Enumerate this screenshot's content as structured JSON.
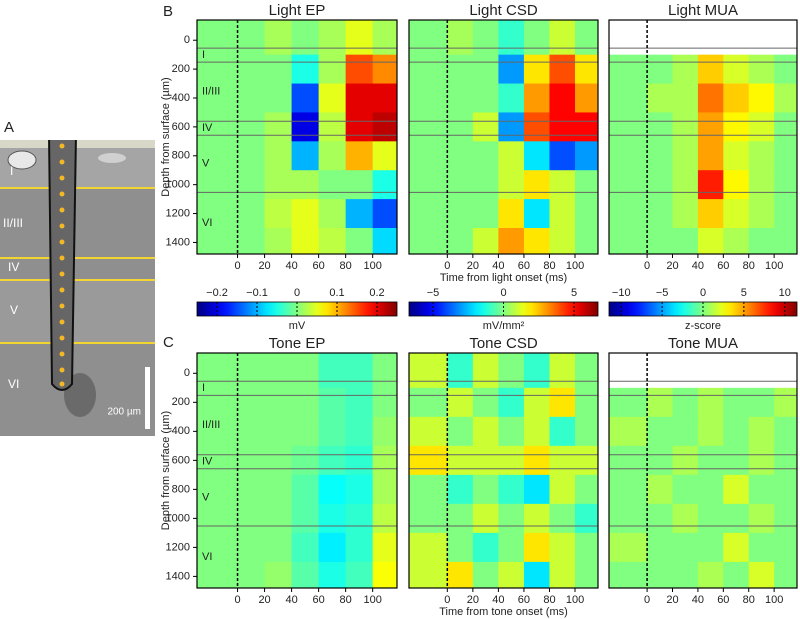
{
  "panel_labels": [
    "A",
    "B",
    "C"
  ],
  "scale_bar": "200 µm",
  "layers": {
    "names": [
      "I",
      "II/III",
      "IV",
      "V",
      "VI"
    ],
    "boundaries": [
      55,
      152,
      561,
      658,
      1053
    ]
  },
  "colorbars": [
    {
      "label": "mV",
      "clim": [
        -0.25,
        0.25
      ],
      "ticks": [
        {
          "value": -0.2,
          "label": "−0.2"
        },
        {
          "value": -0.1,
          "label": "−0.1"
        },
        0,
        0.1,
        0.2
      ]
    },
    {
      "label": "mV/mm²",
      "clim": [
        -6.7,
        6.7
      ],
      "ticks": [
        {
          "value": -5,
          "label": "−5"
        },
        0,
        5
      ]
    },
    {
      "label": "z-score",
      "clim": [
        -11.5,
        11.5
      ],
      "ticks": [
        {
          "value": -10,
          "label": "−10"
        },
        {
          "value": -5,
          "label": "−5"
        },
        0,
        5,
        10
      ]
    }
  ],
  "chart_data": [
    {
      "type": "heatmap",
      "title": "Light EP",
      "colorbar": 0,
      "onset": 0,
      "ylabel": "Depth from surface (µm)",
      "x": [
        -10,
        10,
        30,
        50,
        70,
        90,
        110
      ],
      "y": [
        0,
        200,
        400,
        600,
        800,
        1000,
        1200,
        1400
      ],
      "xlim": [
        -30,
        118
      ],
      "ylim": [
        -140,
        1480
      ],
      "xticks": [
        0,
        20,
        40,
        60,
        80,
        100
      ],
      "yticks": [
        0,
        200,
        400,
        600,
        800,
        1000,
        1200,
        1400
      ],
      "values": [
        [
          0,
          0,
          0.02,
          0,
          0.02,
          0.05,
          0.02
        ],
        [
          0,
          0,
          0,
          -0.05,
          0.02,
          0.15,
          0.12
        ],
        [
          0,
          0,
          0,
          -0.15,
          0.05,
          0.2,
          0.2
        ],
        [
          0,
          0,
          0.02,
          -0.2,
          0.03,
          0.2,
          0.22
        ],
        [
          0,
          0,
          0.02,
          -0.1,
          0.02,
          0.1,
          0.05
        ],
        [
          0,
          0,
          0.02,
          0.02,
          0,
          0,
          -0.05
        ],
        [
          0,
          0,
          0.03,
          0.05,
          0.02,
          -0.1,
          -0.15
        ],
        [
          0,
          0,
          0.02,
          0.05,
          0.03,
          0,
          -0.08
        ]
      ]
    },
    {
      "type": "heatmap",
      "title": "Light CSD",
      "colorbar": 1,
      "onset": 0,
      "xlabel": "Time from light onset (ms)",
      "x": [
        -10,
        10,
        30,
        50,
        70,
        90,
        110
      ],
      "y": [
        0,
        200,
        400,
        600,
        800,
        1000,
        1200,
        1400
      ],
      "xlim": [
        -30,
        118
      ],
      "ylim": [
        -140,
        1480
      ],
      "xticks": [
        0,
        20,
        40,
        60,
        80,
        100
      ],
      "values": [
        [
          0,
          0.5,
          0,
          -1,
          0,
          1,
          0
        ],
        [
          0,
          0,
          0,
          -3,
          2,
          4,
          2
        ],
        [
          0,
          0,
          0,
          -1,
          3,
          5,
          3
        ],
        [
          0,
          0,
          1,
          -3,
          4,
          5,
          5
        ],
        [
          0,
          0,
          0,
          1,
          -2,
          -4,
          -3
        ],
        [
          0,
          0,
          0,
          1,
          2,
          1,
          0
        ],
        [
          0,
          0,
          0,
          2,
          -2,
          1,
          0
        ],
        [
          0,
          0,
          1,
          3,
          2,
          1,
          0
        ]
      ]
    },
    {
      "type": "heatmap",
      "title": "Light MUA",
      "colorbar": 2,
      "onset": 0,
      "x": [
        -10,
        10,
        30,
        50,
        70,
        90,
        110
      ],
      "y": [
        0,
        200,
        400,
        600,
        800,
        1000,
        1200,
        1400
      ],
      "xlim": [
        -30,
        118
      ],
      "ylim": [
        -140,
        1480
      ],
      "xticks": [
        0,
        20,
        40,
        60,
        80,
        100
      ],
      "values": [
        [
          null,
          null,
          null,
          null,
          null,
          null,
          null
        ],
        [
          0,
          0,
          1,
          4,
          2,
          1,
          0
        ],
        [
          0,
          1,
          1,
          6,
          4,
          3,
          1
        ],
        [
          0,
          0,
          1,
          5,
          3,
          2,
          0
        ],
        [
          0,
          0,
          1,
          5,
          2,
          1,
          0
        ],
        [
          0,
          0,
          1,
          8,
          3,
          1,
          0
        ],
        [
          0,
          0,
          1,
          4,
          2,
          1,
          0
        ],
        [
          0,
          0,
          0,
          2,
          1,
          0,
          0
        ]
      ]
    },
    {
      "type": "heatmap",
      "title": "Tone EP",
      "colorbar": 0,
      "onset": 0,
      "ylabel": "Depth from surface (µm)",
      "x": [
        -10,
        10,
        30,
        50,
        70,
        90,
        110
      ],
      "y": [
        0,
        200,
        400,
        600,
        800,
        1000,
        1200,
        1400
      ],
      "xlim": [
        -30,
        118
      ],
      "ylim": [
        -140,
        1480
      ],
      "xticks": [
        0,
        20,
        40,
        60,
        80,
        100
      ],
      "yticks": [
        0,
        200,
        400,
        600,
        800,
        1000,
        1200,
        1400
      ],
      "values": [
        [
          0,
          0,
          0,
          0,
          -0.03,
          -0.03,
          0
        ],
        [
          0,
          0,
          0,
          0,
          -0.02,
          -0.03,
          0
        ],
        [
          0,
          0,
          0,
          0,
          -0.02,
          -0.03,
          0.01
        ],
        [
          0,
          0,
          0,
          -0.01,
          -0.03,
          -0.04,
          0.02
        ],
        [
          0,
          0,
          0,
          -0.02,
          -0.06,
          -0.05,
          0.02
        ],
        [
          0,
          0,
          0,
          -0.02,
          -0.05,
          -0.04,
          0.03
        ],
        [
          0,
          0,
          0,
          -0.03,
          -0.07,
          -0.04,
          0.05
        ],
        [
          0,
          0,
          0.01,
          -0.02,
          -0.05,
          -0.03,
          0.06
        ]
      ]
    },
    {
      "type": "heatmap",
      "title": "Tone CSD",
      "colorbar": 1,
      "onset": 0,
      "xlabel": "Time from tone onset (ms)",
      "x": [
        -10,
        10,
        30,
        50,
        70,
        90,
        110
      ],
      "y": [
        0,
        200,
        400,
        600,
        800,
        1000,
        1200,
        1400
      ],
      "xlim": [
        -30,
        118
      ],
      "ylim": [
        -140,
        1480
      ],
      "xticks": [
        0,
        20,
        40,
        60,
        80,
        100
      ],
      "values": [
        [
          1,
          -1,
          1,
          0,
          -1,
          1,
          0
        ],
        [
          0,
          1,
          0,
          -1,
          1,
          2,
          0
        ],
        [
          1,
          0,
          1,
          0,
          1,
          -1,
          0
        ],
        [
          2,
          1,
          1,
          1,
          2,
          1,
          1
        ],
        [
          0,
          -1,
          0,
          -1,
          -2,
          1,
          0
        ],
        [
          0,
          0,
          1,
          0,
          1,
          0,
          -1
        ],
        [
          1,
          0,
          -1,
          0,
          2,
          1,
          0
        ],
        [
          1,
          2,
          0,
          1,
          -2,
          1,
          0
        ]
      ]
    },
    {
      "type": "heatmap",
      "title": "Tone MUA",
      "colorbar": 2,
      "onset": 0,
      "x": [
        -10,
        10,
        30,
        50,
        70,
        90,
        110
      ],
      "y": [
        0,
        200,
        400,
        600,
        800,
        1000,
        1200,
        1400
      ],
      "xlim": [
        -30,
        118
      ],
      "ylim": [
        -140,
        1480
      ],
      "xticks": [
        0,
        20,
        40,
        60,
        80,
        100
      ],
      "values": [
        [
          null,
          null,
          null,
          null,
          null,
          null,
          null
        ],
        [
          0,
          1,
          0,
          1,
          0,
          0,
          1
        ],
        [
          1,
          0,
          0,
          1,
          0,
          1,
          0
        ],
        [
          0,
          0,
          1,
          0,
          0,
          1,
          0
        ],
        [
          0,
          1,
          0,
          0,
          2,
          0,
          0
        ],
        [
          0,
          0,
          1,
          0,
          0,
          1,
          0
        ],
        [
          1,
          0,
          0,
          0,
          2,
          0,
          0
        ],
        [
          0,
          0,
          0,
          1,
          0,
          2,
          0
        ]
      ]
    }
  ]
}
